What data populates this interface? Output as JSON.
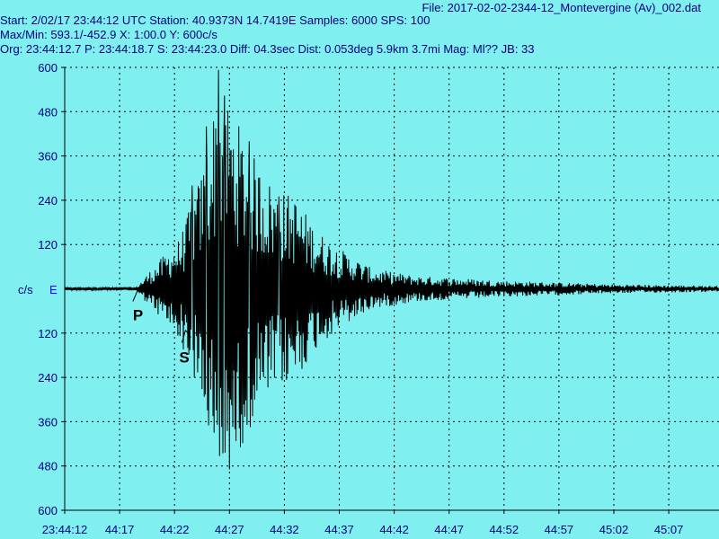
{
  "header": {
    "file": "File: 2017-02-02-2344-12_Montevergine (Av)_002.dat",
    "line1": "Start: 2/02/17 23:44:12 UTC Station:  40.9373N 14.7419E Samples: 6000  SPS: 100",
    "line2": "Max/Min: 593.1/-452.9 X: 1:00.0 Y: 600c/s",
    "line3": "Org: 23:44:12.7 P: 23:44:18.7 S: 23:44:23.0 Diff: 04.3sec Dist: 0.053deg 5.9km 3.7mi  Mag: Ml?? JB: 33"
  },
  "labels": {
    "units": "c/s",
    "channel": "E",
    "p_mark": "P",
    "s_mark": "S"
  },
  "colors": {
    "background": "#80eff0",
    "text": "#000080",
    "trace": "#000000",
    "channel": "#0000ff"
  },
  "chart_data": {
    "type": "line",
    "title": "",
    "xlabel": "",
    "ylabel": "c/s",
    "series_name": "E",
    "x_ticks": [
      "23:44:12",
      "44:17",
      "44:22",
      "44:27",
      "44:32",
      "44:37",
      "44:42",
      "44:47",
      "44:52",
      "44:57",
      "45:02",
      "45:07"
    ],
    "y_ticks_upper": [
      "600",
      "480",
      "360",
      "240",
      "120"
    ],
    "y_ticks_lower": [
      "120",
      "240",
      "360",
      "480",
      "600"
    ],
    "ylim": [
      -600,
      600
    ],
    "x_range_seconds": [
      0,
      60
    ],
    "max": 593.1,
    "min": -452.9,
    "p_arrival_s": 6.7,
    "s_arrival_s": 11.0,
    "grid": true,
    "envelope": [
      {
        "t": 0,
        "amp": 4
      },
      {
        "t": 6.5,
        "amp": 5
      },
      {
        "t": 7.5,
        "amp": 40
      },
      {
        "t": 9,
        "amp": 90
      },
      {
        "t": 10.5,
        "amp": 140
      },
      {
        "t": 12.5,
        "amp": 320
      },
      {
        "t": 14,
        "amp": 560
      },
      {
        "t": 15.5,
        "amp": 470
      },
      {
        "t": 17,
        "amp": 370
      },
      {
        "t": 19,
        "amp": 280
      },
      {
        "t": 21,
        "amp": 250
      },
      {
        "t": 23,
        "amp": 160
      },
      {
        "t": 25,
        "amp": 110
      },
      {
        "t": 28,
        "amp": 55
      },
      {
        "t": 32,
        "amp": 35
      },
      {
        "t": 40,
        "amp": 22
      },
      {
        "t": 50,
        "amp": 12
      },
      {
        "t": 60,
        "amp": 8
      }
    ],
    "peaks": [
      {
        "t": 12.9,
        "v": 440
      },
      {
        "t": 13.6,
        "v": -390
      },
      {
        "t": 14.0,
        "v": 593.1
      },
      {
        "t": 14.1,
        "v": -452.9
      },
      {
        "t": 14.5,
        "v": 430
      },
      {
        "t": 15.5,
        "v": -380
      },
      {
        "t": 16.8,
        "v": 400
      },
      {
        "t": 17.0,
        "v": -300
      },
      {
        "t": 13.1,
        "v": -370
      },
      {
        "t": 11.6,
        "v": 280
      },
      {
        "t": 19.5,
        "v": 250
      },
      {
        "t": 20.3,
        "v": -230
      }
    ]
  }
}
